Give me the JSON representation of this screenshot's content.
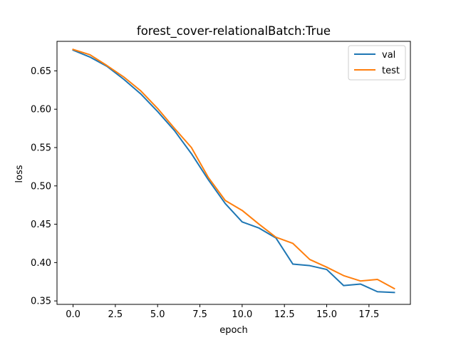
{
  "chart_data": {
    "type": "line",
    "title": "forest_cover-relationalBatch:True",
    "xlabel": "epoch",
    "ylabel": "loss",
    "xlim": [
      -0.95,
      19.95
    ],
    "ylim": [
      0.3455,
      0.6885
    ],
    "x_ticks": [
      0.0,
      2.5,
      5.0,
      7.5,
      10.0,
      12.5,
      15.0,
      17.5
    ],
    "x_tick_labels": [
      "0.0",
      "2.5",
      "5.0",
      "7.5",
      "10.0",
      "12.5",
      "15.0",
      "17.5"
    ],
    "y_ticks": [
      0.35,
      0.4,
      0.45,
      0.5,
      0.55,
      0.6,
      0.65
    ],
    "y_tick_labels": [
      "0.35",
      "0.40",
      "0.45",
      "0.50",
      "0.55",
      "0.60",
      "0.65"
    ],
    "grid": false,
    "legend_position": "top-right",
    "x": [
      0,
      1,
      2,
      3,
      4,
      5,
      6,
      7,
      8,
      9,
      10,
      11,
      12,
      13,
      14,
      15,
      16,
      17,
      18,
      19
    ],
    "series": [
      {
        "name": "val",
        "color": "#1f77b4",
        "values": [
          0.677,
          0.668,
          0.656,
          0.639,
          0.62,
          0.597,
          0.572,
          0.542,
          0.508,
          0.477,
          0.453,
          0.445,
          0.432,
          0.398,
          0.396,
          0.391,
          0.37,
          0.372,
          0.362,
          0.361
        ]
      },
      {
        "name": "test",
        "color": "#ff7f0e",
        "values": [
          0.678,
          0.671,
          0.657,
          0.642,
          0.624,
          0.601,
          0.575,
          0.55,
          0.511,
          0.481,
          0.468,
          0.45,
          0.433,
          0.425,
          0.404,
          0.394,
          0.383,
          0.376,
          0.378,
          0.366
        ]
      }
    ]
  }
}
